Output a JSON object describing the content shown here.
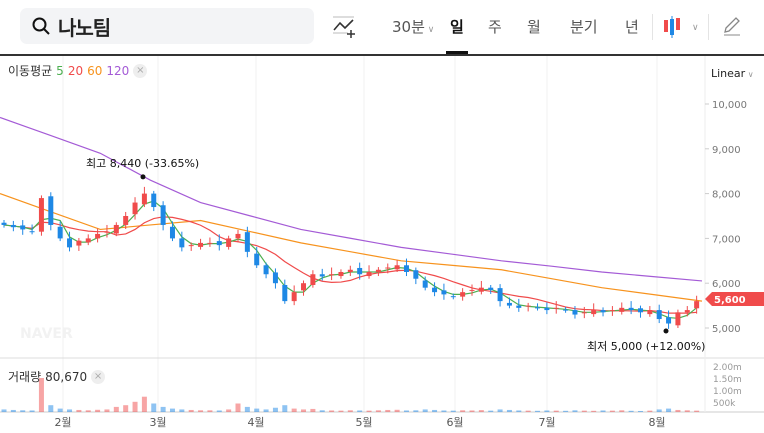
{
  "search": {
    "icon": "search-icon",
    "query": "나노팀"
  },
  "toolbar": {
    "indicator_icon": "add-indicator-icon",
    "interval": "30분",
    "periods": [
      "일",
      "주",
      "월",
      "분기",
      "년"
    ],
    "selected": "일",
    "chart_type_icon": "candlestick-icon",
    "draw_icon": "pencil-icon"
  },
  "legend": {
    "label": "이동평균",
    "ma": [
      {
        "n": "5",
        "color": "#4caf50"
      },
      {
        "n": "20",
        "color": "#f04b4b"
      },
      {
        "n": "60",
        "color": "#f7931e"
      },
      {
        "n": "120",
        "color": "#a45bd6"
      }
    ],
    "close": "×"
  },
  "scale": "Linear",
  "volume": {
    "label": "거래량",
    "value": "80,670",
    "close": "×",
    "ticks": [
      "2.00m",
      "1.50m",
      "1.00m",
      "500k"
    ]
  },
  "watermark": "NAVER FINANCIAL",
  "colors": {
    "up": "#f04b4b",
    "down": "#1e88e5"
  },
  "chart_data": {
    "type": "candlestick",
    "y_ticks": [
      "10,000",
      "9,000",
      "8,000",
      "7,000",
      "6,000",
      "5,000"
    ],
    "ylim": [
      4700,
      10500
    ],
    "x_ticks": [
      "2월",
      "3월",
      "4월",
      "5월",
      "6월",
      "7월",
      "8월"
    ],
    "current_price": "5,600",
    "high_annotation": "최고 8,440 (-33.65%)",
    "low_annotation": "최저 5,000 (+12.00%)",
    "closes": [
      7300,
      7250,
      7200,
      7150,
      7900,
      7300,
      7000,
      6800,
      6950,
      7000,
      7100,
      7150,
      7300,
      7500,
      7800,
      8000,
      7700,
      7300,
      7000,
      6800,
      6850,
      6900,
      6900,
      6850,
      7000,
      7100,
      6700,
      6400,
      6200,
      6000,
      5600,
      5800,
      6000,
      6200,
      6150,
      6200,
      6250,
      6300,
      6200,
      6250,
      6300,
      6350,
      6400,
      6250,
      6100,
      5900,
      5800,
      5750,
      5700,
      5800,
      5850,
      5900,
      5850,
      5600,
      5500,
      5450,
      5500,
      5450,
      5400,
      5450,
      5400,
      5300,
      5350,
      5400,
      5350,
      5400,
      5450,
      5400,
      5350,
      5400,
      5200,
      5100,
      5350,
      5400,
      5600
    ],
    "ma60": [
      8000,
      7600,
      7200,
      7300,
      7400,
      7150,
      6900,
      6700,
      6500,
      6400,
      6300,
      6100,
      5900,
      5750,
      5600
    ],
    "ma120": [
      9700,
      9300,
      8900,
      8300,
      7800,
      7500,
      7200,
      7000,
      6800,
      6650,
      6500,
      6380,
      6250,
      6150,
      6050
    ],
    "volume_k": [
      150,
      120,
      100,
      90,
      2000,
      400,
      200,
      150,
      120,
      100,
      130,
      150,
      300,
      400,
      600,
      900,
      500,
      300,
      200,
      150,
      120,
      100,
      100,
      90,
      150,
      500,
      300,
      200,
      150,
      250,
      400,
      200,
      150,
      180,
      100,
      90,
      80,
      100,
      90,
      80,
      100,
      120,
      130,
      90,
      100,
      150,
      120,
      90,
      80,
      100,
      90,
      110,
      80,
      150,
      120,
      90,
      80,
      70,
      90,
      80,
      70,
      100,
      80,
      70,
      90,
      80,
      100,
      70,
      60,
      80,
      150,
      200,
      120,
      100,
      80
    ]
  }
}
